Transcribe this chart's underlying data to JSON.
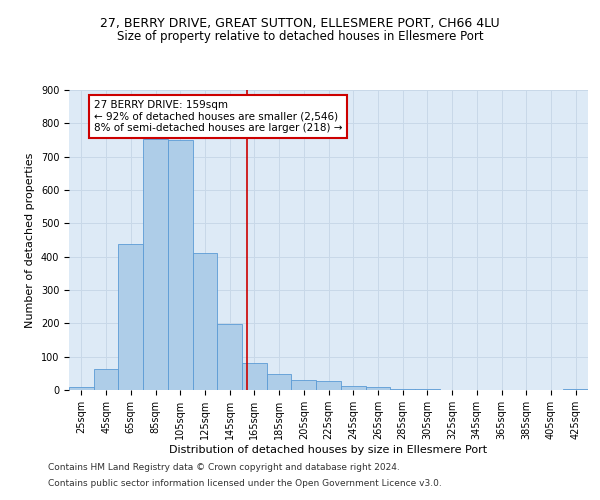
{
  "title_line1": "27, BERRY DRIVE, GREAT SUTTON, ELLESMERE PORT, CH66 4LU",
  "title_line2": "Size of property relative to detached houses in Ellesmere Port",
  "xlabel": "Distribution of detached houses by size in Ellesmere Port",
  "ylabel": "Number of detached properties",
  "categories": [
    "25sqm",
    "45sqm",
    "65sqm",
    "85sqm",
    "105sqm",
    "125sqm",
    "145sqm",
    "165sqm",
    "185sqm",
    "205sqm",
    "225sqm",
    "245sqm",
    "265sqm",
    "285sqm",
    "305sqm",
    "325sqm",
    "345sqm",
    "365sqm",
    "385sqm",
    "405sqm",
    "425sqm"
  ],
  "values": [
    10,
    62,
    437,
    752,
    750,
    410,
    198,
    80,
    47,
    30,
    28,
    13,
    8,
    4,
    2,
    1,
    0,
    0,
    0,
    0,
    3
  ],
  "bar_color": "#aecde8",
  "bar_edge_color": "#5b9bd5",
  "property_line_color": "#cc0000",
  "annotation_text": "27 BERRY DRIVE: 159sqm\n← 92% of detached houses are smaller (2,546)\n8% of semi-detached houses are larger (218) →",
  "annotation_box_color": "#ffffff",
  "annotation_box_edge_color": "#cc0000",
  "ylim": [
    0,
    900
  ],
  "yticks": [
    0,
    100,
    200,
    300,
    400,
    500,
    600,
    700,
    800,
    900
  ],
  "grid_color": "#c8d8e8",
  "background_color": "#ddeaf6",
  "footer_line1": "Contains HM Land Registry data © Crown copyright and database right 2024.",
  "footer_line2": "Contains public sector information licensed under the Open Government Licence v3.0.",
  "title_fontsize": 9,
  "subtitle_fontsize": 8.5,
  "axis_label_fontsize": 8,
  "tick_fontsize": 7,
  "annotation_fontsize": 7.5,
  "footer_fontsize": 6.5
}
